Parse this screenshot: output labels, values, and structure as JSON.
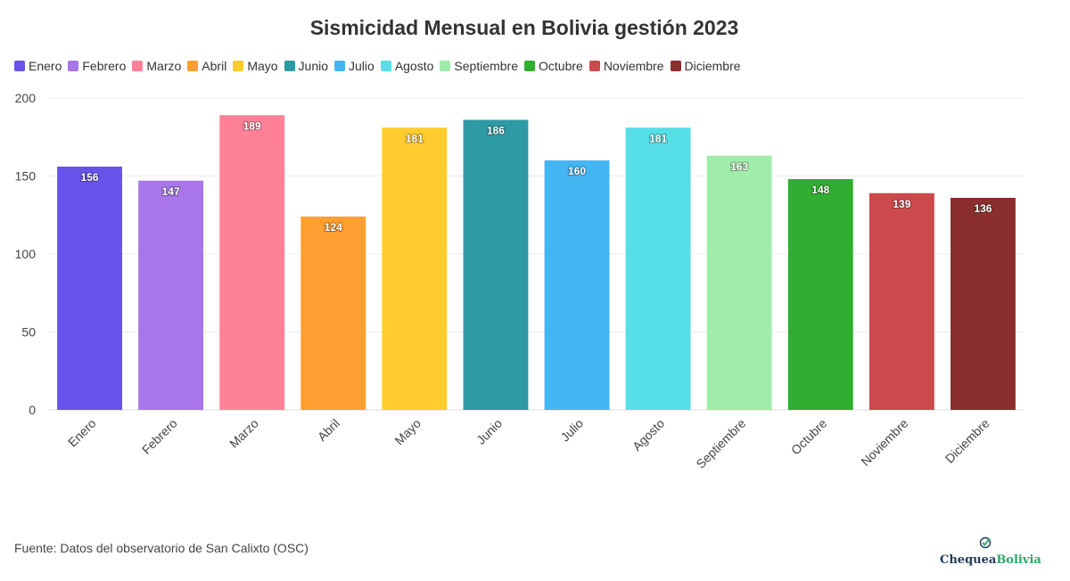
{
  "title": "Sismicidad Mensual en Bolivia gestión 2023",
  "source": "Fuente: Datos del observatorio de San Calixto (OSC)",
  "logo": {
    "part1": "Chequea",
    "part2": "Bolivia",
    "icon": "check-icon"
  },
  "chart_data": {
    "type": "bar",
    "title": "Sismicidad Mensual en Bolivia gestión 2023",
    "xlabel": "",
    "ylabel": "",
    "ylim": [
      0,
      200
    ],
    "yticks": [
      0,
      50,
      100,
      150,
      200
    ],
    "grid": true,
    "legend_position": "top-left",
    "categories": [
      "Enero",
      "Febrero",
      "Marzo",
      "Abril",
      "Mayo",
      "Junio",
      "Julio",
      "Agosto",
      "Septiembre",
      "Octubre",
      "Noviembre",
      "Diciembre"
    ],
    "values": [
      156,
      147,
      189,
      124,
      181,
      186,
      160,
      181,
      163,
      148,
      139,
      136
    ],
    "colors": [
      "#6752ea",
      "#a876e8",
      "#ff8198",
      "#ff9f32",
      "#ffcb2e",
      "#2e9aa3",
      "#43b6f1",
      "#56dfe7",
      "#a0ecaa",
      "#31ad31",
      "#cc4a4c",
      "#8b2e2e"
    ]
  }
}
